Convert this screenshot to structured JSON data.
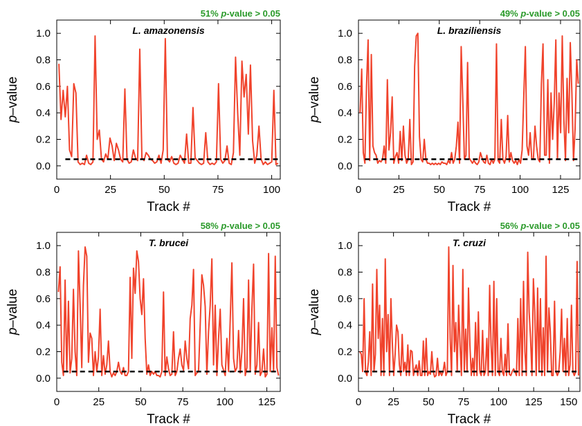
{
  "colors": {
    "series": "#f0432c",
    "threshold": "#000000",
    "stat": "#2a9a2a"
  },
  "chart_data": [
    {
      "type": "line",
      "panel_label": "L. amazonensis",
      "stat_pct": "51%",
      "stat_p": "p",
      "stat_rest": "-value > 0.05",
      "xlabel": "Track #",
      "ylabel_p": "p",
      "ylabel_rest": "–value",
      "xlim": [
        0,
        104
      ],
      "ylim": [
        -0.1,
        1.1
      ],
      "xticks": [
        0,
        25,
        50,
        75,
        100
      ],
      "yticks": [
        0.0,
        0.2,
        0.4,
        0.6,
        0.8,
        1.0
      ],
      "ytick_labels": [
        "0.0",
        "0.2",
        "0.4",
        "0.6",
        "0.8",
        "1.0"
      ],
      "threshold": 0.05,
      "values": [
        0.77,
        0.35,
        0.57,
        0.37,
        0.6,
        0.12,
        0.07,
        0.62,
        0.55,
        0.03,
        0.01,
        0.02,
        0.01,
        0.08,
        0.02,
        0.01,
        0.03,
        0.98,
        0.2,
        0.27,
        0.05,
        0.03,
        0.09,
        0.05,
        0.21,
        0.15,
        0.04,
        0.17,
        0.12,
        0.05,
        0.03,
        0.58,
        0.05,
        0.02,
        0.03,
        0.12,
        0.06,
        0.04,
        0.88,
        0.06,
        0.04,
        0.1,
        0.08,
        0.05,
        0.04,
        0.02,
        0.03,
        0.08,
        0.02,
        0.12,
        0.96,
        0.05,
        0.03,
        0.07,
        0.02,
        0.01,
        0.02,
        0.08,
        0.05,
        0.02,
        0.24,
        0.02,
        0.02,
        0.44,
        0.06,
        0.04,
        0.02,
        0.01,
        0.02,
        0.25,
        0.03,
        0.01,
        0.02,
        0.01,
        0.03,
        0.62,
        0.05,
        0.02,
        0.04,
        0.15,
        0.02,
        0.01,
        0.1,
        0.82,
        0.4,
        0.08,
        0.79,
        0.52,
        0.69,
        0.24,
        0.76,
        0.19,
        0.02,
        0.08,
        0.3,
        0.05,
        0.01,
        0.03,
        0.01,
        0.02,
        0.03,
        0.57,
        0.01,
        0.02
      ]
    },
    {
      "type": "line",
      "panel_label": "L. braziliensis",
      "stat_pct": "49%",
      "stat_p": "p",
      "stat_rest": "-value > 0.05",
      "xlabel": "Track #",
      "ylabel_p": "p",
      "ylabel_rest": "–value",
      "xlim": [
        0,
        137
      ],
      "ylim": [
        -0.1,
        1.1
      ],
      "xticks": [
        0,
        25,
        50,
        75,
        100,
        125
      ],
      "yticks": [
        0.0,
        0.2,
        0.4,
        0.6,
        0.8,
        1.0
      ],
      "ytick_labels": [
        "0.0",
        "0.2",
        "0.4",
        "0.6",
        "0.8",
        "1.0"
      ],
      "threshold": 0.05,
      "values": [
        0.4,
        0.73,
        0.1,
        0.02,
        0.6,
        0.95,
        0.04,
        0.84,
        0.15,
        0.1,
        0.08,
        0.02,
        0.04,
        0.03,
        0.05,
        0.15,
        0.02,
        0.65,
        0.12,
        0.25,
        0.52,
        0.02,
        0.07,
        0.1,
        0.02,
        0.26,
        0.04,
        0.3,
        0.08,
        0.02,
        0.05,
        0.35,
        0.01,
        0.03,
        0.75,
        0.98,
        1.0,
        0.22,
        0.05,
        0.03,
        0.2,
        0.05,
        0.02,
        0.02,
        0.01,
        0.02,
        0.01,
        0.02,
        0.01,
        0.02,
        0.01,
        0.03,
        0.02,
        0.02,
        0.01,
        0.04,
        0.02,
        0.1,
        0.02,
        0.05,
        0.15,
        0.33,
        0.02,
        0.9,
        0.5,
        0.05,
        0.08,
        0.78,
        0.06,
        0.04,
        0.02,
        0.04,
        0.02,
        0.01,
        0.03,
        0.1,
        0.06,
        0.03,
        0.02,
        0.08,
        0.02,
        0.01,
        0.05,
        0.02,
        0.05,
        0.92,
        0.04,
        0.02,
        0.35,
        0.05,
        0.02,
        0.07,
        0.38,
        0.03,
        0.1,
        0.04,
        0.02,
        0.04,
        0.01,
        0.05,
        0.02,
        0.12,
        0.52,
        0.9,
        0.15,
        0.08,
        0.25,
        0.05,
        0.05,
        0.3,
        0.15,
        0.05,
        0.03,
        0.62,
        0.92,
        0.08,
        0.08,
        0.65,
        0.02,
        0.55,
        0.2,
        0.48,
        0.95,
        0.05,
        0.55,
        0.25,
        0.98,
        0.35,
        0.04,
        0.66,
        0.25,
        0.93,
        0.55,
        0.04,
        0.28,
        0.8,
        0.62
      ]
    },
    {
      "type": "line",
      "panel_label": "T. brucei",
      "stat_pct": "58%",
      "stat_p": "p",
      "stat_rest": "-value > 0.05",
      "xlabel": "Track #",
      "ylabel_p": "p",
      "ylabel_rest": "–value",
      "xlim": [
        0,
        133
      ],
      "ylim": [
        -0.1,
        1.1
      ],
      "xticks": [
        0,
        25,
        50,
        75,
        100,
        125
      ],
      "yticks": [
        0.0,
        0.2,
        0.4,
        0.6,
        0.8,
        1.0
      ],
      "ytick_labels": [
        "0.0",
        "0.2",
        "0.4",
        "0.6",
        "0.8",
        "1.0"
      ],
      "threshold": 0.05,
      "values": [
        0.65,
        0.84,
        0.12,
        0.02,
        0.74,
        0.05,
        0.58,
        0.04,
        0.15,
        0.67,
        0.2,
        0.02,
        0.96,
        0.55,
        0.08,
        0.7,
        0.99,
        0.92,
        0.12,
        0.34,
        0.3,
        0.02,
        0.2,
        0.05,
        0.16,
        0.52,
        0.02,
        0.17,
        0.03,
        0.1,
        0.28,
        0.05,
        0.01,
        0.04,
        0.02,
        0.05,
        0.12,
        0.05,
        0.03,
        0.08,
        0.02,
        0.02,
        0.05,
        0.76,
        0.15,
        0.83,
        0.64,
        0.96,
        0.88,
        0.6,
        0.48,
        0.75,
        0.3,
        0.03,
        0.1,
        0.02,
        0.05,
        0.03,
        0.05,
        0.02,
        0.02,
        0.01,
        0.05,
        0.65,
        0.02,
        0.16,
        0.07,
        0.02,
        0.03,
        0.35,
        0.02,
        0.05,
        0.15,
        0.22,
        0.1,
        0.06,
        0.28,
        0.15,
        0.07,
        0.45,
        0.55,
        0.82,
        0.02,
        0.04,
        0.05,
        0.4,
        0.78,
        0.7,
        0.54,
        0.03,
        0.35,
        0.55,
        0.9,
        0.1,
        0.55,
        0.02,
        0.3,
        0.52,
        0.1,
        0.06,
        0.02,
        0.3,
        0.05,
        0.44,
        0.87,
        0.15,
        0.05,
        0.08,
        0.36,
        0.04,
        0.2,
        0.6,
        0.02,
        0.08,
        0.74,
        0.05,
        0.52,
        0.86,
        0.03,
        0.1,
        0.42,
        0.02,
        0.05,
        0.22,
        0.01,
        0.03,
        0.94,
        0.05,
        0.38,
        0.05,
        0.92,
        0.08,
        0.02
      ]
    },
    {
      "type": "line",
      "panel_label": "T. cruzi",
      "stat_pct": "56%",
      "stat_p": "p",
      "stat_rest": "-value > 0.05",
      "xlabel": "Track #",
      "ylabel_p": "p",
      "ylabel_rest": "–value",
      "xlim": [
        0,
        158
      ],
      "ylim": [
        -0.1,
        1.1
      ],
      "xticks": [
        0,
        25,
        50,
        75,
        100,
        125,
        150
      ],
      "yticks": [
        0.0,
        0.2,
        0.4,
        0.6,
        0.8,
        1.0
      ],
      "ytick_labels": [
        "0.0",
        "0.2",
        "0.4",
        "0.6",
        "0.8",
        "1.0"
      ],
      "threshold": 0.05,
      "values": [
        0.2,
        0.18,
        0.05,
        0.6,
        0.05,
        0.02,
        0.12,
        0.35,
        0.02,
        0.71,
        0.05,
        0.18,
        0.82,
        0.3,
        0.55,
        0.02,
        0.45,
        0.02,
        0.9,
        0.2,
        0.48,
        0.02,
        0.6,
        0.27,
        0.02,
        0.18,
        0.4,
        0.35,
        0.1,
        0.02,
        0.33,
        0.05,
        0.12,
        0.02,
        0.25,
        0.02,
        0.21,
        0.2,
        0.02,
        0.07,
        0.1,
        0.02,
        0.13,
        0.02,
        0.02,
        0.28,
        0.02,
        0.3,
        0.02,
        0.05,
        0.03,
        0.2,
        0.05,
        0.01,
        0.02,
        0.15,
        0.02,
        0.05,
        0.02,
        0.05,
        0.12,
        0.02,
        0.05,
        0.99,
        0.3,
        0.02,
        0.85,
        0.2,
        0.42,
        0.05,
        0.55,
        0.25,
        0.02,
        0.82,
        0.05,
        0.37,
        0.05,
        0.68,
        0.25,
        0.02,
        0.15,
        0.02,
        0.42,
        0.02,
        0.5,
        0.05,
        0.02,
        0.36,
        0.02,
        0.05,
        0.3,
        0.02,
        0.7,
        0.25,
        0.02,
        0.73,
        0.02,
        0.6,
        0.05,
        0.02,
        0.3,
        0.05,
        0.02,
        0.18,
        0.02,
        0.41,
        0.03,
        0.02,
        0.05,
        0.07,
        0.05,
        0.02,
        0.45,
        0.02,
        0.6,
        0.02,
        0.73,
        0.2,
        0.02,
        0.95,
        0.5,
        0.3,
        0.02,
        0.75,
        0.5,
        0.02,
        0.68,
        0.05,
        0.6,
        0.02,
        0.38,
        0.02,
        0.92,
        0.05,
        0.53,
        0.35,
        0.02,
        0.02,
        0.58,
        0.05,
        0.02,
        0.05,
        0.2,
        0.52,
        0.05,
        0.3,
        0.02,
        0.45,
        0.02,
        0.1,
        0.55,
        0.05,
        0.02,
        0.05,
        0.88,
        0.02
      ]
    }
  ]
}
